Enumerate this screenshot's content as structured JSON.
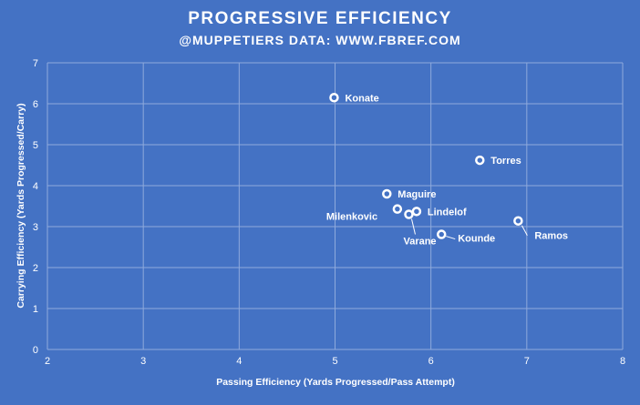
{
  "chart_data": {
    "type": "scatter",
    "title": "PROGRESSIVE EFFICIENCY",
    "subtitle": "@MUPPETIERS DATA: WWW.FBREF.COM",
    "xlabel": "Passing Efficiency (Yards Progressed/Pass Attempt)",
    "ylabel": "Carrying Efficiency (Yards Progressed/Carry)",
    "xlim": [
      2,
      8
    ],
    "ylim": [
      0,
      7
    ],
    "xticks": [
      "2",
      "3",
      "4",
      "5",
      "6",
      "7",
      "8"
    ],
    "yticks": [
      "0",
      "1",
      "2",
      "3",
      "4",
      "5",
      "6",
      "7"
    ],
    "grid": true,
    "points": [
      {
        "label": "Konate",
        "x": 4.99,
        "y": 6.15
      },
      {
        "label": "Torres",
        "x": 6.51,
        "y": 4.62
      },
      {
        "label": "Maguire",
        "x": 5.54,
        "y": 3.8
      },
      {
        "label": "Milenkovic",
        "x": 5.65,
        "y": 3.43
      },
      {
        "label": "Lindelof",
        "x": 5.85,
        "y": 3.37
      },
      {
        "label": "Varane",
        "x": 5.77,
        "y": 3.3
      },
      {
        "label": "Ramos",
        "x": 6.91,
        "y": 3.14
      },
      {
        "label": "Kounde",
        "x": 6.11,
        "y": 2.81
      }
    ],
    "colors": {
      "background": "#4472c4",
      "marker": "#ffffff",
      "grid": "#8faadc"
    }
  }
}
